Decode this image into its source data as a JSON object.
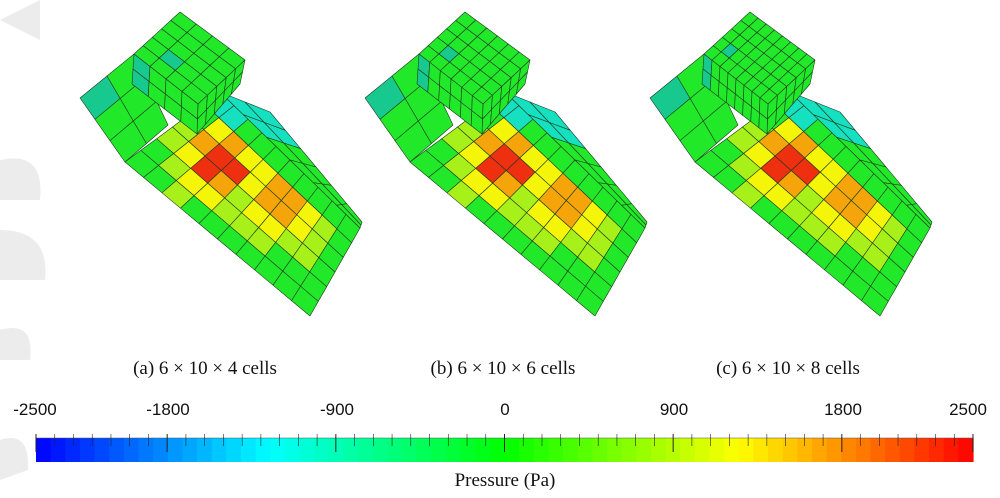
{
  "panels": [
    {
      "caption": "(a) 6 × 10 × 4 cells",
      "cells_along_length": 4
    },
    {
      "caption": "(b) 6 × 10 × 6 cells",
      "cells_along_length": 6
    },
    {
      "caption": "(c) 6 × 10 × 8 cells",
      "cells_along_length": 8
    }
  ],
  "colorbar": {
    "title": "Pressure (Pa)",
    "min": -2500,
    "max": 2500,
    "tick_values": [
      -2500,
      -1800,
      -900,
      0,
      900,
      1800,
      2500
    ],
    "tick_labels": [
      "-2500",
      "-1800",
      "-900",
      "0",
      "900",
      "1800",
      "2500"
    ],
    "colormap": [
      "#0000ff",
      "#00ffff",
      "#00ff00",
      "#ffff00",
      "#ff0000"
    ]
  },
  "colors": {
    "green": "#22e82a",
    "yellow_green": "#a8f01a",
    "yellow": "#f5f50a",
    "orange": "#f5a50a",
    "red": "#ee3010",
    "teal": "#17c98e",
    "cyan": "#15e0c0"
  }
}
